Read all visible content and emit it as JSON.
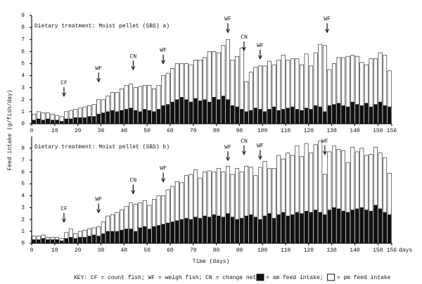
{
  "chart_data": [
    {
      "type": "bar",
      "stacked": true,
      "title": "Dietary treatment: Moist pellet (SBS) a)",
      "ylabel": "Feed intake (g/fish/day)",
      "xlim": [
        0,
        156
      ],
      "ylim": [
        0,
        9
      ],
      "xticks": [
        0,
        10,
        20,
        30,
        40,
        50,
        60,
        70,
        80,
        90,
        100,
        110,
        120,
        130,
        140,
        150,
        156
      ],
      "yticks": [
        0,
        1,
        2,
        3,
        4,
        5,
        6,
        7,
        8,
        9
      ],
      "x": [
        1,
        3,
        5,
        7,
        9,
        11,
        13,
        15,
        17,
        19,
        21,
        23,
        25,
        27,
        29,
        31,
        33,
        35,
        37,
        39,
        41,
        43,
        45,
        47,
        49,
        51,
        53,
        55,
        57,
        59,
        61,
        63,
        65,
        67,
        69,
        71,
        73,
        75,
        77,
        79,
        81,
        83,
        85,
        87,
        89,
        91,
        93,
        95,
        97,
        99,
        101,
        103,
        105,
        107,
        109,
        111,
        113,
        115,
        117,
        119,
        121,
        123,
        125,
        127,
        129,
        131,
        133,
        135,
        137,
        139,
        141,
        143,
        145,
        147,
        149,
        151,
        153,
        155
      ],
      "series": [
        {
          "name": "= am feed intake;",
          "color": "#111111",
          "values": [
            0.3,
            0.4,
            0.3,
            0.4,
            0.3,
            0.3,
            0.2,
            0.4,
            0.4,
            0.5,
            0.5,
            0.5,
            0.6,
            0.6,
            0.8,
            0.9,
            1.0,
            1.1,
            1.0,
            1.1,
            1.2,
            1.3,
            1.1,
            1.0,
            1.2,
            1.1,
            1.0,
            1.2,
            1.5,
            1.6,
            1.8,
            2.0,
            2.2,
            2.0,
            1.8,
            2.1,
            1.9,
            2.0,
            1.8,
            2.2,
            2.0,
            2.3,
            2.0,
            1.5,
            1.4,
            1.2,
            1.0,
            1.1,
            1.3,
            1.2,
            1.0,
            1.2,
            1.4,
            1.1,
            1.2,
            1.3,
            1.4,
            1.2,
            1.1,
            1.3,
            1.2,
            1.5,
            1.4,
            1.0,
            1.5,
            1.6,
            1.7,
            1.5,
            1.4,
            1.8,
            1.6,
            1.5,
            1.7,
            1.4,
            1.6,
            1.8,
            1.5,
            1.4
          ]
        },
        {
          "name": "= pm feed intake",
          "color": "#ffffff",
          "values": [
            0.5,
            0.6,
            0.6,
            0.5,
            0.5,
            0.4,
            0.4,
            0.6,
            0.7,
            0.7,
            0.8,
            0.9,
            0.9,
            1.0,
            1.2,
            1.1,
            1.3,
            1.5,
            1.6,
            1.8,
            2.0,
            2.0,
            1.9,
            2.1,
            2.0,
            2.1,
            1.9,
            2.0,
            2.5,
            2.6,
            2.8,
            3.0,
            2.8,
            3.0,
            3.1,
            3.2,
            3.4,
            3.5,
            4.2,
            3.8,
            3.9,
            4.2,
            5.0,
            3.8,
            4.2,
            5.1,
            2.5,
            3.2,
            3.4,
            3.6,
            3.8,
            4.0,
            3.5,
            4.2,
            4.5,
            4.0,
            4.0,
            4.2,
            3.8,
            4.5,
            3.6,
            4.4,
            5.2,
            5.5,
            3.0,
            3.4,
            3.8,
            4.0,
            4.2,
            3.9,
            4.0,
            3.6,
            3.2,
            4.0,
            3.8,
            4.1,
            4.2,
            3.0
          ]
        }
      ],
      "annotations": [
        {
          "text": "CF",
          "x": 14,
          "y": 3.4
        },
        {
          "text": "WF",
          "x": 29,
          "y": 4.6
        },
        {
          "text": "CN",
          "x": 44,
          "y": 5.6
        },
        {
          "text": "WF",
          "x": 57,
          "y": 6.1
        },
        {
          "text": "WF",
          "x": 85,
          "y": 8.7
        },
        {
          "text": "CN",
          "x": 92,
          "y": 7.2
        },
        {
          "text": "WF",
          "x": 99,
          "y": 6.5
        },
        {
          "text": "WF",
          "x": 128,
          "y": 8.7
        }
      ]
    },
    {
      "type": "bar",
      "stacked": true,
      "title": "Dietary treatment: Moist pellet (SBS) b)",
      "xlabel": "Time (days)",
      "xunit": "days",
      "key": "KEY: CF = count fish; WF = weigh fish; CN = change net;",
      "xlim": [
        0,
        156
      ],
      "ylim": [
        0,
        9
      ],
      "xticks": [
        0,
        10,
        20,
        30,
        40,
        50,
        60,
        70,
        80,
        90,
        100,
        110,
        120,
        130,
        140,
        150,
        156
      ],
      "yticks": [
        0,
        1,
        2,
        3,
        4,
        5,
        6,
        7,
        8
      ],
      "x": [
        1,
        3,
        5,
        7,
        9,
        11,
        13,
        15,
        17,
        19,
        21,
        23,
        25,
        27,
        29,
        31,
        33,
        35,
        37,
        39,
        41,
        43,
        45,
        47,
        49,
        51,
        53,
        55,
        57,
        59,
        61,
        63,
        65,
        67,
        69,
        71,
        73,
        75,
        77,
        79,
        81,
        83,
        85,
        87,
        89,
        91,
        93,
        95,
        97,
        99,
        101,
        103,
        105,
        107,
        109,
        111,
        113,
        115,
        117,
        119,
        121,
        123,
        125,
        127,
        129,
        131,
        133,
        135,
        137,
        139,
        141,
        143,
        145,
        147,
        149,
        151,
        153,
        155
      ],
      "series": [
        {
          "name": "= am feed intake;",
          "color": "#111111",
          "values": [
            0.3,
            0.3,
            0.4,
            0.3,
            0.3,
            0.3,
            0.2,
            0.4,
            0.5,
            0.4,
            0.5,
            0.5,
            0.6,
            0.7,
            0.6,
            0.8,
            1.0,
            1.0,
            1.0,
            1.1,
            1.2,
            1.2,
            1.0,
            1.3,
            1.4,
            1.2,
            1.4,
            1.5,
            1.6,
            1.7,
            1.8,
            1.9,
            2.0,
            2.1,
            2.0,
            2.2,
            2.1,
            2.3,
            2.2,
            2.4,
            2.3,
            2.2,
            2.5,
            2.2,
            2.0,
            2.1,
            2.3,
            2.4,
            2.2,
            2.0,
            2.3,
            2.5,
            2.1,
            2.4,
            2.6,
            2.3,
            2.4,
            2.6,
            2.5,
            2.7,
            2.6,
            2.8,
            2.6,
            2.4,
            2.8,
            3.0,
            2.9,
            2.7,
            2.6,
            2.8,
            2.9,
            3.0,
            2.8,
            2.7,
            3.2,
            2.9,
            2.6,
            2.4
          ]
        },
        {
          "name": "= pm feed intake",
          "color": "#ffffff",
          "values": [
            0.3,
            0.3,
            0.3,
            0.2,
            0.2,
            0.2,
            0.2,
            0.5,
            0.7,
            0.4,
            0.5,
            0.6,
            0.6,
            0.6,
            0.8,
            1.0,
            1.3,
            1.4,
            1.6,
            1.7,
            1.9,
            2.2,
            2.3,
            2.1,
            2.2,
            2.0,
            2.3,
            2.5,
            2.4,
            2.8,
            3.0,
            3.3,
            3.1,
            3.6,
            3.8,
            4.0,
            3.4,
            3.7,
            3.9,
            3.6,
            4.0,
            3.8,
            4.0,
            3.6,
            4.3,
            3.9,
            4.2,
            4.0,
            3.5,
            4.4,
            4.6,
            3.8,
            4.2,
            5.0,
            4.5,
            5.3,
            5.0,
            5.6,
            4.8,
            5.7,
            5.0,
            5.5,
            6.0,
            3.4,
            4.9,
            5.2,
            5.0,
            5.1,
            4.2,
            5.3,
            4.8,
            5.0,
            4.6,
            4.8,
            4.9,
            4.7,
            4.6,
            3.5
          ]
        }
      ],
      "annotations": [
        {
          "text": "CF",
          "x": 14,
          "y": 2.9
        },
        {
          "text": "WF",
          "x": 29,
          "y": 3.7
        },
        {
          "text": "CN",
          "x": 44,
          "y": 5.3
        },
        {
          "text": "WF",
          "x": 57,
          "y": 6.3
        },
        {
          "text": "WF",
          "x": 85,
          "y": 8.1
        },
        {
          "text": "CN",
          "x": 92,
          "y": 8.6
        },
        {
          "text": "WF",
          "x": 99,
          "y": 8.2
        },
        {
          "text": "WF",
          "x": 127,
          "y": 8.6
        }
      ]
    }
  ]
}
